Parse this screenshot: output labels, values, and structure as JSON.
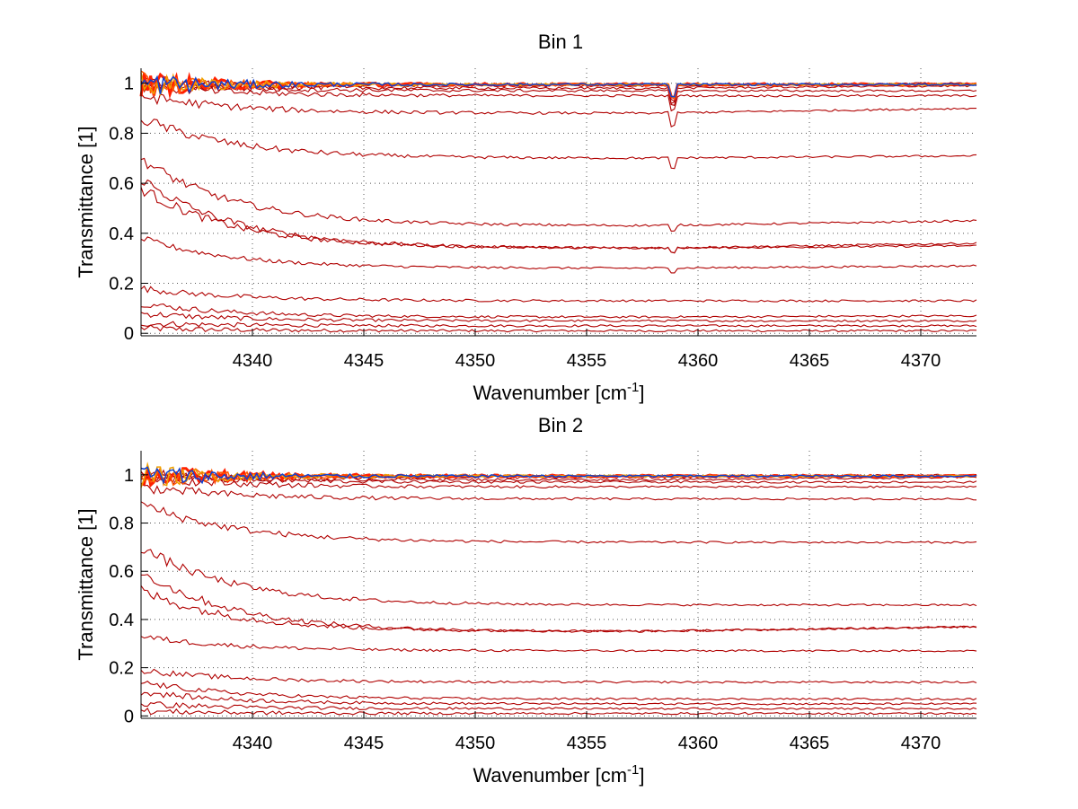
{
  "chart_data": [
    {
      "type": "line",
      "title": "Bin 1",
      "xlabel": "Wavenumber [cm",
      "xlabel_sup": "-1",
      "xlabel_close": "]",
      "ylabel": "Transmittance [1]",
      "xlim": [
        4335,
        4372.5
      ],
      "ylim": [
        -0.01,
        1.06
      ],
      "xticks": [
        4340,
        4345,
        4350,
        4355,
        4360,
        4365,
        4370
      ],
      "yticks": [
        0,
        0.2,
        0.4,
        0.6,
        0.8,
        1
      ],
      "ytick_labels": [
        "0",
        "0.2",
        "0.4",
        "0.6",
        "0.8",
        "1"
      ],
      "grid": true,
      "line_color": "#b00000",
      "top_colors": [
        "#ff2000",
        "#ff5a00",
        "#f0a000",
        "#1040d0"
      ],
      "absorption_line_x": 4358.85,
      "series": [
        {
          "start": 0.02,
          "end": 0.01,
          "values": [
            0.012,
            0.01,
            0.01,
            0.01
          ]
        },
        {
          "start": 0.04,
          "end": 0.03,
          "values": [
            0.04,
            0.025,
            0.03,
            0.03
          ]
        },
        {
          "start": 0.08,
          "end": 0.05,
          "values": [
            0.08,
            0.045,
            0.05,
            0.05
          ]
        },
        {
          "start": 0.12,
          "end": 0.07,
          "values": [
            0.12,
            0.06,
            0.065,
            0.07
          ]
        },
        {
          "start": 0.18,
          "end": 0.13,
          "values": [
            0.18,
            0.12,
            0.13,
            0.135
          ]
        },
        {
          "start": 0.38,
          "end": 0.27,
          "values": [
            0.38,
            0.26,
            0.26,
            0.27
          ]
        },
        {
          "start": 0.58,
          "end": 0.35,
          "values": [
            0.58,
            0.34,
            0.34,
            0.35
          ]
        },
        {
          "start": 0.62,
          "end": 0.36,
          "values": [
            0.62,
            0.35,
            0.34,
            0.36
          ]
        },
        {
          "start": 0.7,
          "end": 0.45,
          "values": [
            0.7,
            0.44,
            0.43,
            0.45
          ]
        },
        {
          "start": 0.86,
          "end": 0.71,
          "values": [
            0.86,
            0.7,
            0.7,
            0.71
          ]
        },
        {
          "start": 0.95,
          "end": 0.9,
          "values": [
            0.95,
            0.88,
            0.88,
            0.9
          ]
        },
        {
          "start": 0.99,
          "end": 0.95,
          "values": [
            0.99,
            0.94,
            0.95,
            0.95
          ]
        },
        {
          "start": 1.0,
          "end": 0.97,
          "values": [
            1.0,
            0.96,
            0.97,
            0.97
          ]
        },
        {
          "start": 1.0,
          "end": 0.99,
          "values": [
            1.0,
            0.98,
            0.98,
            0.99
          ]
        },
        {
          "start": 1.0,
          "end": 1.0,
          "values": [
            1.0,
            0.99,
            0.99,
            1.0
          ]
        }
      ]
    },
    {
      "type": "line",
      "title": "Bin 2",
      "xlabel": "Wavenumber [cm",
      "xlabel_sup": "-1",
      "xlabel_close": "]",
      "ylabel": "Transmittance [1]",
      "xlim": [
        4335,
        4372.5
      ],
      "ylim": [
        -0.01,
        1.1
      ],
      "xticks": [
        4340,
        4345,
        4350,
        4355,
        4360,
        4365,
        4370
      ],
      "yticks": [
        0,
        0.2,
        0.4,
        0.6,
        0.8,
        1
      ],
      "ytick_labels": [
        "0",
        "0.2",
        "0.4",
        "0.6",
        "0.8",
        "1"
      ],
      "grid": true,
      "line_color": "#b00000",
      "top_colors": [
        "#ff2000",
        "#ff5a00",
        "#f0a000",
        "#1040d0"
      ],
      "series": [
        {
          "start": 0.02,
          "end": 0.01,
          "values": [
            0.015,
            0.01,
            0.01,
            0.01
          ]
        },
        {
          "start": 0.05,
          "end": 0.03,
          "values": [
            0.05,
            0.025,
            0.03,
            0.03
          ]
        },
        {
          "start": 0.1,
          "end": 0.05,
          "values": [
            0.1,
            0.045,
            0.05,
            0.05
          ]
        },
        {
          "start": 0.14,
          "end": 0.07,
          "values": [
            0.14,
            0.065,
            0.07,
            0.07
          ]
        },
        {
          "start": 0.19,
          "end": 0.14,
          "values": [
            0.19,
            0.13,
            0.14,
            0.14
          ]
        },
        {
          "start": 0.33,
          "end": 0.27,
          "values": [
            0.33,
            0.27,
            0.27,
            0.27
          ]
        },
        {
          "start": 0.52,
          "end": 0.37,
          "values": [
            0.52,
            0.35,
            0.35,
            0.37
          ]
        },
        {
          "start": 0.6,
          "end": 0.37,
          "values": [
            0.6,
            0.36,
            0.35,
            0.37
          ]
        },
        {
          "start": 0.7,
          "end": 0.46,
          "values": [
            0.7,
            0.46,
            0.46,
            0.46
          ]
        },
        {
          "start": 0.88,
          "end": 0.72,
          "values": [
            0.88,
            0.72,
            0.72,
            0.72
          ]
        },
        {
          "start": 0.95,
          "end": 0.9,
          "values": [
            0.95,
            0.9,
            0.9,
            0.9
          ]
        },
        {
          "start": 0.99,
          "end": 0.95,
          "values": [
            0.99,
            0.95,
            0.95,
            0.95
          ]
        },
        {
          "start": 1.0,
          "end": 0.97,
          "values": [
            1.0,
            0.97,
            0.97,
            0.97
          ]
        },
        {
          "start": 1.0,
          "end": 0.99,
          "values": [
            1.0,
            0.98,
            0.98,
            0.99
          ]
        },
        {
          "start": 1.0,
          "end": 1.0,
          "values": [
            1.0,
            0.99,
            0.99,
            1.0
          ]
        }
      ]
    }
  ]
}
